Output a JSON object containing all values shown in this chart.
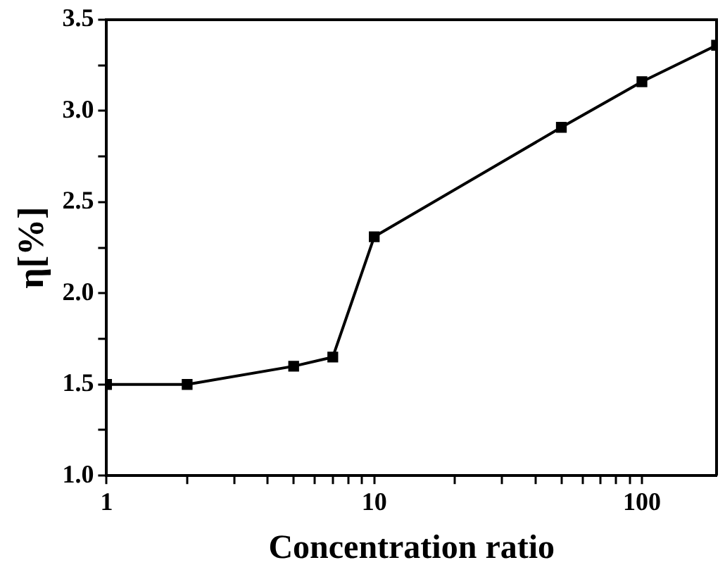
{
  "chart_data": {
    "type": "line",
    "xlabel": "Concentration ratio",
    "ylabel": "η[%]",
    "log": "x",
    "x": [
      1,
      2,
      5,
      7,
      10,
      50,
      100,
      190
    ],
    "series": [
      {
        "color": "#000000",
        "values": [
          1.5,
          1.5,
          1.6,
          1.65,
          2.31,
          2.91,
          3.16,
          3.36
        ]
      }
    ],
    "xlim": [
      1,
      190
    ],
    "xticks": [
      1,
      {
        "value": 2,
        "label": null
      },
      {
        "value": 3,
        "label": null
      },
      {
        "value": 4,
        "label": null
      },
      {
        "value": 5,
        "label": null
      },
      {
        "value": 6,
        "label": null
      },
      {
        "value": 7,
        "label": null
      },
      {
        "value": 8,
        "label": null
      },
      {
        "value": 9,
        "label": null
      },
      10,
      {
        "value": 20,
        "label": null
      },
      {
        "value": 30,
        "label": null
      },
      {
        "value": 40,
        "label": null
      },
      {
        "value": 50,
        "label": null
      },
      {
        "value": 60,
        "label": null
      },
      {
        "value": 70,
        "label": null
      },
      {
        "value": 80,
        "label": null
      },
      {
        "value": 90,
        "label": null
      },
      100
    ],
    "ylim": [
      1.0,
      3.5
    ],
    "yticks": [
      {
        "value": 1,
        "label": "1.0"
      },
      {
        "value": 1.25,
        "label": null
      },
      {
        "value": 1.5,
        "label": "1.5"
      },
      {
        "value": 1.75,
        "label": null
      },
      {
        "value": 2,
        "label": "2.0"
      },
      {
        "value": 2.25,
        "label": null
      },
      {
        "value": 2.5,
        "label": "2.5"
      },
      {
        "value": 2.75,
        "label": null
      },
      {
        "value": 3,
        "label": "3.0"
      },
      {
        "value": 3.25,
        "label": null
      },
      {
        "value": 3.5,
        "label": "3.5"
      }
    ],
    "grid": false,
    "legend": false,
    "marker": "square",
    "line_style": "solid"
  }
}
